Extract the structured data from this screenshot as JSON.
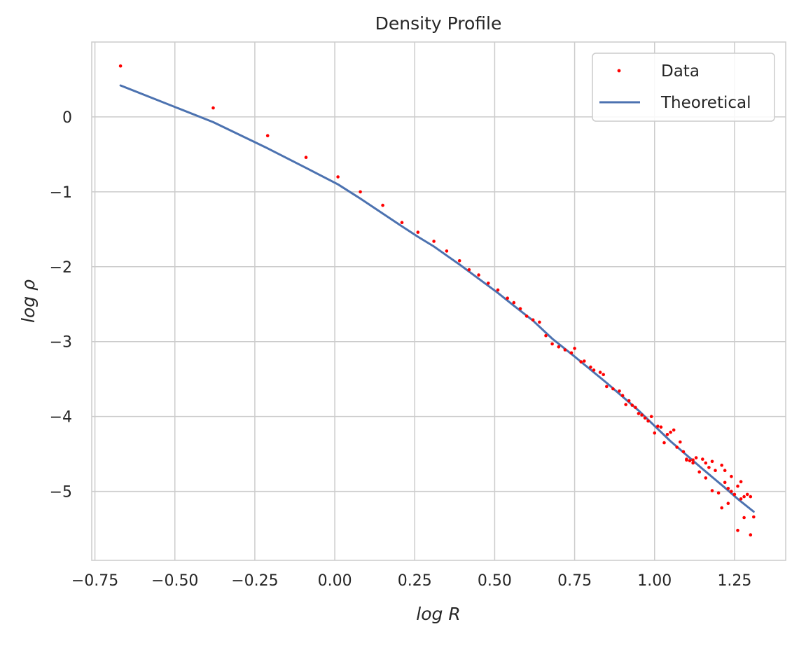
{
  "chart_data": {
    "type": "scatter",
    "title": "Density Profile",
    "xlabel": "log R",
    "ylabel": "log ρ",
    "xlim": [
      -0.76,
      1.41
    ],
    "ylim": [
      -5.92,
      1.0
    ],
    "xticks": [
      -0.75,
      -0.5,
      -0.25,
      0.0,
      0.25,
      0.5,
      0.75,
      1.0,
      1.25
    ],
    "xtick_labels": [
      "−0.75",
      "−0.50",
      "−0.25",
      "0.00",
      "0.25",
      "0.50",
      "0.75",
      "1.00",
      "1.25"
    ],
    "yticks": [
      0,
      -1,
      -2,
      -3,
      -4,
      -5
    ],
    "ytick_labels": [
      "0",
      "−1",
      "−2",
      "−3",
      "−4",
      "−5"
    ],
    "grid": true,
    "legend": {
      "placement": "top-right",
      "entries": [
        "Data",
        "Theoretical"
      ]
    },
    "series": [
      {
        "name": "Data",
        "kind": "scatter",
        "color": "#ff0000",
        "points": [
          [
            -0.67,
            0.68
          ],
          [
            -0.38,
            0.12
          ],
          [
            -0.21,
            -0.25
          ],
          [
            -0.09,
            -0.54
          ],
          [
            0.01,
            -0.8
          ],
          [
            0.08,
            -1.0
          ],
          [
            0.15,
            -1.18
          ],
          [
            0.21,
            -1.41
          ],
          [
            0.26,
            -1.54
          ],
          [
            0.31,
            -1.66
          ],
          [
            0.35,
            -1.79
          ],
          [
            0.39,
            -1.92
          ],
          [
            0.42,
            -2.04
          ],
          [
            0.45,
            -2.11
          ],
          [
            0.48,
            -2.22
          ],
          [
            0.51,
            -2.31
          ],
          [
            0.54,
            -2.42
          ],
          [
            0.56,
            -2.48
          ],
          [
            0.58,
            -2.56
          ],
          [
            0.6,
            -2.66
          ],
          [
            0.62,
            -2.71
          ],
          [
            0.64,
            -2.74
          ],
          [
            0.66,
            -2.92
          ],
          [
            0.68,
            -3.03
          ],
          [
            0.7,
            -3.07
          ],
          [
            0.72,
            -3.11
          ],
          [
            0.74,
            -3.15
          ],
          [
            0.75,
            -3.09
          ],
          [
            0.77,
            -3.27
          ],
          [
            0.78,
            -3.26
          ],
          [
            0.8,
            -3.34
          ],
          [
            0.81,
            -3.38
          ],
          [
            0.83,
            -3.41
          ],
          [
            0.84,
            -3.44
          ],
          [
            0.85,
            -3.6
          ],
          [
            0.87,
            -3.63
          ],
          [
            0.89,
            -3.66
          ],
          [
            0.9,
            -3.72
          ],
          [
            0.91,
            -3.84
          ],
          [
            0.92,
            -3.79
          ],
          [
            0.93,
            -3.85
          ],
          [
            0.94,
            -3.88
          ],
          [
            0.95,
            -3.96
          ],
          [
            0.96,
            -3.98
          ],
          [
            0.97,
            -4.02
          ],
          [
            0.98,
            -4.06
          ],
          [
            0.99,
            -4.0
          ],
          [
            1.0,
            -4.22
          ],
          [
            1.01,
            -4.13
          ],
          [
            1.02,
            -4.14
          ],
          [
            1.03,
            -4.35
          ],
          [
            1.04,
            -4.24
          ],
          [
            1.05,
            -4.21
          ],
          [
            1.06,
            -4.18
          ],
          [
            1.07,
            -4.41
          ],
          [
            1.08,
            -4.34
          ],
          [
            1.09,
            -4.47
          ],
          [
            1.1,
            -4.57
          ],
          [
            1.1,
            -4.58
          ],
          [
            1.11,
            -4.59
          ],
          [
            1.12,
            -4.62
          ],
          [
            1.12,
            -4.58
          ],
          [
            1.13,
            -4.55
          ],
          [
            1.14,
            -4.74
          ],
          [
            1.15,
            -4.57
          ],
          [
            1.16,
            -4.82
          ],
          [
            1.16,
            -4.62
          ],
          [
            1.17,
            -4.68
          ],
          [
            1.18,
            -4.99
          ],
          [
            1.18,
            -4.6
          ],
          [
            1.19,
            -4.72
          ],
          [
            1.2,
            -5.02
          ],
          [
            1.21,
            -4.65
          ],
          [
            1.21,
            -5.22
          ],
          [
            1.22,
            -4.88
          ],
          [
            1.22,
            -4.72
          ],
          [
            1.23,
            -5.16
          ],
          [
            1.23,
            -4.96
          ],
          [
            1.24,
            -4.8
          ],
          [
            1.24,
            -5.0
          ],
          [
            1.25,
            -5.04
          ],
          [
            1.26,
            -4.93
          ],
          [
            1.26,
            -5.52
          ],
          [
            1.27,
            -5.1
          ],
          [
            1.27,
            -4.87
          ],
          [
            1.28,
            -5.35
          ],
          [
            1.28,
            -5.07
          ],
          [
            1.29,
            -5.04
          ],
          [
            1.3,
            -5.58
          ],
          [
            1.3,
            -5.07
          ],
          [
            1.31,
            -5.34
          ]
        ]
      },
      {
        "name": "Theoretical",
        "kind": "line",
        "color": "#4c72b0",
        "points": [
          [
            -0.67,
            0.42
          ],
          [
            -0.38,
            -0.07
          ],
          [
            -0.21,
            -0.42
          ],
          [
            -0.09,
            -0.68
          ],
          [
            0.01,
            -0.9
          ],
          [
            0.08,
            -1.09
          ],
          [
            0.15,
            -1.29
          ],
          [
            0.21,
            -1.46
          ],
          [
            0.26,
            -1.6
          ],
          [
            0.31,
            -1.73
          ],
          [
            0.35,
            -1.85
          ],
          [
            0.39,
            -1.97
          ],
          [
            0.45,
            -2.16
          ],
          [
            0.51,
            -2.35
          ],
          [
            0.56,
            -2.52
          ],
          [
            0.62,
            -2.72
          ],
          [
            0.68,
            -2.96
          ],
          [
            0.75,
            -3.2
          ],
          [
            0.85,
            -3.55
          ],
          [
            0.95,
            -3.92
          ],
          [
            1.05,
            -4.33
          ],
          [
            1.15,
            -4.7
          ],
          [
            1.22,
            -4.95
          ],
          [
            1.26,
            -5.1
          ],
          [
            1.31,
            -5.27
          ]
        ]
      }
    ]
  }
}
